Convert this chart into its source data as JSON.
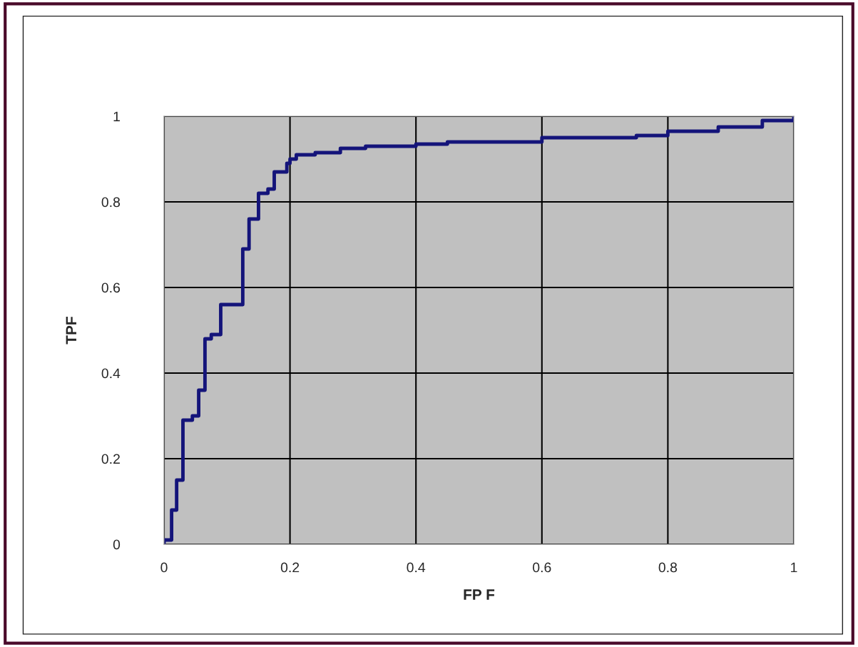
{
  "chart_data": {
    "type": "step",
    "xlabel": "FP F",
    "ylabel": "TPF",
    "xlim": [
      0,
      1
    ],
    "ylim": [
      0,
      1
    ],
    "xticks": [
      0,
      0.2,
      0.4,
      0.6,
      0.8,
      1
    ],
    "yticks": [
      0,
      0.2,
      0.4,
      0.6,
      0.8,
      1
    ],
    "grid": true,
    "series": [
      {
        "color": "#14147a",
        "x": [
          0,
          0,
          0.012,
          0.02,
          0.03,
          0.045,
          0.055,
          0.065,
          0.075,
          0.09,
          0.125,
          0.135,
          0.15,
          0.165,
          0.175,
          0.195,
          0.2,
          0.21,
          0.24,
          0.28,
          0.32,
          0.4,
          0.45,
          0.6,
          0.75,
          0.8,
          0.88,
          0.95,
          1
        ],
        "values": [
          0,
          0.01,
          0.08,
          0.15,
          0.29,
          0.3,
          0.36,
          0.48,
          0.49,
          0.56,
          0.69,
          0.76,
          0.82,
          0.83,
          0.87,
          0.89,
          0.9,
          0.91,
          0.915,
          0.925,
          0.93,
          0.935,
          0.94,
          0.95,
          0.955,
          0.965,
          0.975,
          0.99,
          1
        ]
      }
    ]
  }
}
